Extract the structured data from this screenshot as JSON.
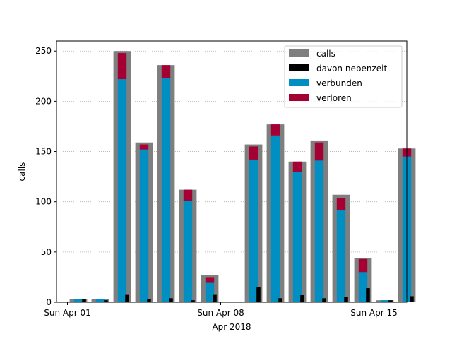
{
  "chart_data": {
    "type": "bar",
    "xlabel": "Apr 2018",
    "ylabel": "calls",
    "ylim": [
      0,
      260
    ],
    "yticks": [
      0,
      50,
      100,
      150,
      200,
      250
    ],
    "xlim": [
      "2018-03-31T12:00",
      "2018-04-16T12:00"
    ],
    "xtick_dates": [
      "2018-04-01",
      "2018-04-08",
      "2018-04-15"
    ],
    "xtick_labels": [
      "Sun Apr 01",
      "Sun Apr 08",
      "Sun Apr 15"
    ],
    "grid": "y-dotted",
    "legend_position": "top-right",
    "dates": [
      "2018-04-01",
      "2018-04-02",
      "2018-04-03",
      "2018-04-04",
      "2018-04-05",
      "2018-04-06",
      "2018-04-07",
      "2018-04-08",
      "2018-04-09",
      "2018-04-10",
      "2018-04-11",
      "2018-04-12",
      "2018-04-13",
      "2018-04-14",
      "2018-04-15",
      "2018-04-16"
    ],
    "series": [
      {
        "name": "calls",
        "color": "#7f7f7f",
        "values": [
          3,
          3,
          250,
          159,
          236,
          112,
          27,
          0,
          157,
          177,
          140,
          161,
          107,
          44,
          2,
          153
        ]
      },
      {
        "name": "davon nebenzeit",
        "color": "#000000",
        "values": [
          3,
          2,
          8,
          3,
          4,
          2,
          8,
          0,
          15,
          4,
          7,
          4,
          5,
          14,
          2,
          6
        ]
      },
      {
        "name": "verbunden",
        "color": "#008fc2",
        "values": [
          3,
          3,
          222,
          152,
          223,
          101,
          20,
          0,
          142,
          166,
          130,
          141,
          92,
          30,
          2,
          145
        ]
      },
      {
        "name": "verloren",
        "color": "#a50034",
        "values": [
          0,
          0,
          26,
          5,
          13,
          11,
          5,
          0,
          13,
          11,
          10,
          18,
          12,
          13,
          0,
          8
        ]
      }
    ]
  }
}
